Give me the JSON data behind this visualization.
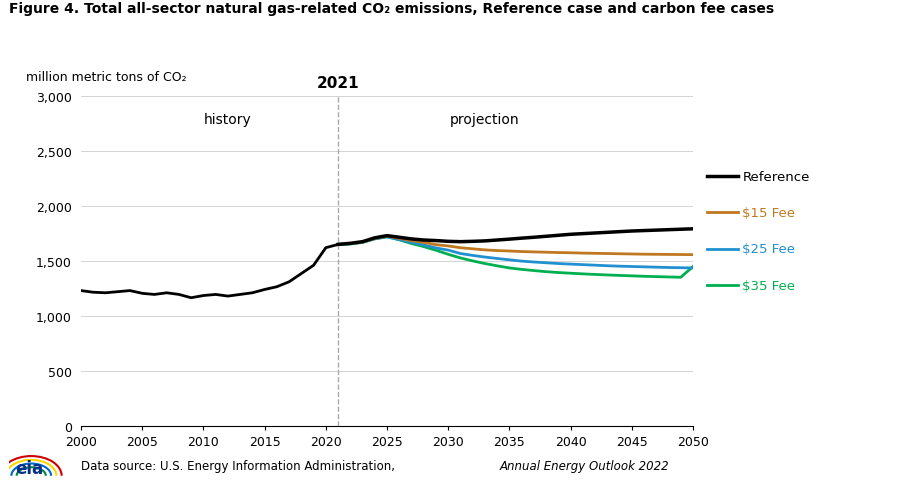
{
  "title": "Figure 4. Total all-sector natural gas-related CO₂ emissions, Reference case and carbon fee cases",
  "ylabel": "million metric tons of CO₂",
  "xlim": [
    2000,
    2050
  ],
  "ylim": [
    0,
    3000
  ],
  "yticks": [
    0,
    500,
    1000,
    1500,
    2000,
    2500,
    3000
  ],
  "xticks": [
    2000,
    2005,
    2010,
    2015,
    2020,
    2025,
    2030,
    2035,
    2040,
    2045,
    2050
  ],
  "divider_year": 2021,
  "history_label": "history",
  "projection_label": "projection",
  "divider_year_label": "2021",
  "source_text": "Data source: U.S. Energy Information Administration, ",
  "source_italic": "Annual Energy Outlook 2022",
  "reference_color": "#000000",
  "fee15_color": "#c07820",
  "fee25_color": "#2090d0",
  "fee35_color": "#00b050",
  "reference_label": "Reference",
  "fee15_label": "$15 Fee",
  "fee25_label": "$25 Fee",
  "fee35_label": "$35 Fee",
  "years_history": [
    2000,
    2001,
    2002,
    2003,
    2004,
    2005,
    2006,
    2007,
    2008,
    2009,
    2010,
    2011,
    2012,
    2013,
    2014,
    2015,
    2016,
    2017,
    2018,
    2019,
    2020,
    2021
  ],
  "reference_history": [
    1230,
    1215,
    1210,
    1220,
    1230,
    1205,
    1195,
    1210,
    1195,
    1165,
    1185,
    1195,
    1180,
    1195,
    1210,
    1240,
    1265,
    1310,
    1385,
    1460,
    1620,
    1650
  ],
  "years_proj": [
    2021,
    2022,
    2023,
    2024,
    2025,
    2026,
    2027,
    2028,
    2029,
    2030,
    2031,
    2032,
    2033,
    2034,
    2035,
    2036,
    2037,
    2038,
    2039,
    2040,
    2041,
    2042,
    2043,
    2044,
    2045,
    2046,
    2047,
    2048,
    2049,
    2050
  ],
  "reference_proj": [
    1650,
    1660,
    1675,
    1710,
    1730,
    1715,
    1700,
    1690,
    1685,
    1678,
    1675,
    1678,
    1682,
    1690,
    1698,
    1707,
    1715,
    1724,
    1733,
    1742,
    1748,
    1754,
    1760,
    1766,
    1772,
    1776,
    1780,
    1784,
    1788,
    1792
  ],
  "fee15_proj": [
    1650,
    1658,
    1672,
    1705,
    1725,
    1705,
    1685,
    1668,
    1648,
    1636,
    1620,
    1610,
    1600,
    1594,
    1590,
    1585,
    1582,
    1579,
    1576,
    1574,
    1571,
    1569,
    1567,
    1565,
    1563,
    1561,
    1560,
    1559,
    1558,
    1557
  ],
  "fee25_proj": [
    1650,
    1655,
    1670,
    1702,
    1718,
    1695,
    1668,
    1645,
    1618,
    1598,
    1567,
    1550,
    1535,
    1522,
    1510,
    1498,
    1490,
    1483,
    1476,
    1471,
    1466,
    1461,
    1456,
    1452,
    1449,
    1446,
    1443,
    1440,
    1438,
    1436
  ],
  "fee35_proj": [
    1650,
    1654,
    1668,
    1700,
    1720,
    1692,
    1658,
    1630,
    1597,
    1560,
    1527,
    1500,
    1476,
    1455,
    1436,
    1423,
    1412,
    1402,
    1394,
    1388,
    1382,
    1377,
    1372,
    1368,
    1364,
    1360,
    1357,
    1354,
    1351,
    1449
  ]
}
